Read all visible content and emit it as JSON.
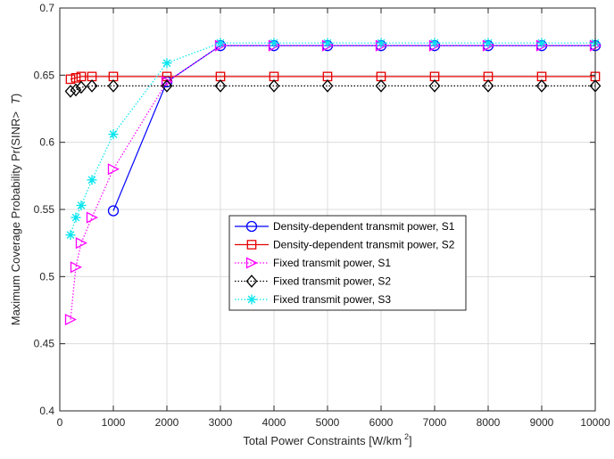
{
  "chart_data": {
    "type": "line",
    "xlabel": "Total Power Constraints [W/km",
    "xlabel_sup": "2",
    "xlabel_close": "]",
    "ylabel": "Maximum Coverage Probability Pr(SINR>",
    "ylabel_italic": "T",
    "ylabel_close": ")",
    "xlim": [
      0,
      10000
    ],
    "ylim": [
      0.4,
      0.7
    ],
    "xticks": [
      0,
      1000,
      2000,
      3000,
      4000,
      5000,
      6000,
      7000,
      8000,
      9000,
      10000
    ],
    "xtick_labels": [
      "0",
      "1000",
      "2000",
      "3000",
      "4000",
      "5000",
      "6000",
      "7000",
      "8000",
      "9000",
      "10000"
    ],
    "yticks": [
      0.4,
      0.45,
      0.5,
      0.55,
      0.6,
      0.65,
      0.7
    ],
    "ytick_labels": [
      "0.4",
      "0.45",
      "0.5",
      "0.55",
      "0.6",
      "0.65",
      "0.7"
    ],
    "grid": true,
    "legend_position": "center-right",
    "series": [
      {
        "name": "Density-dependent transmit power, S1",
        "color": "#0000ff",
        "marker": "circle",
        "dash": "solid",
        "x": [
          1000,
          2000,
          3000,
          4000,
          5000,
          6000,
          7000,
          8000,
          9000,
          10000
        ],
        "y": [
          0.549,
          0.645,
          0.672,
          0.672,
          0.672,
          0.672,
          0.672,
          0.672,
          0.672,
          0.672
        ]
      },
      {
        "name": "Density-dependent transmit power, S2",
        "color": "#e60000",
        "marker": "square",
        "dash": "solid",
        "x": [
          200,
          300,
          400,
          600,
          1000,
          2000,
          3000,
          4000,
          5000,
          6000,
          7000,
          8000,
          9000,
          10000
        ],
        "y": [
          0.647,
          0.648,
          0.649,
          0.649,
          0.649,
          0.649,
          0.649,
          0.649,
          0.649,
          0.649,
          0.649,
          0.649,
          0.649,
          0.649
        ]
      },
      {
        "name": "Fixed transmit power, S1",
        "color": "#ff00ff",
        "marker": "triangle-right",
        "dash": "dotted",
        "x": [
          200,
          300,
          400,
          600,
          1000,
          2000,
          3000,
          4000,
          5000,
          6000,
          7000,
          8000,
          9000,
          10000
        ],
        "y": [
          0.468,
          0.507,
          0.525,
          0.544,
          0.58,
          0.645,
          0.672,
          0.672,
          0.672,
          0.672,
          0.672,
          0.672,
          0.672,
          0.672
        ]
      },
      {
        "name": "Fixed transmit power, S2",
        "color": "#000000",
        "marker": "diamond",
        "dash": "dotted",
        "x": [
          200,
          300,
          400,
          600,
          1000,
          2000,
          3000,
          4000,
          5000,
          6000,
          7000,
          8000,
          9000,
          10000
        ],
        "y": [
          0.638,
          0.639,
          0.641,
          0.642,
          0.642,
          0.642,
          0.642,
          0.642,
          0.642,
          0.642,
          0.642,
          0.642,
          0.642,
          0.642
        ]
      },
      {
        "name": "Fixed transmit power, S3",
        "color": "#00e5ee",
        "marker": "asterisk",
        "dash": "dotted",
        "x": [
          200,
          300,
          400,
          600,
          1000,
          2000,
          3000,
          4000,
          5000,
          6000,
          7000,
          8000,
          9000,
          10000
        ],
        "y": [
          0.531,
          0.544,
          0.553,
          0.572,
          0.606,
          0.659,
          0.674,
          0.674,
          0.674,
          0.674,
          0.674,
          0.674,
          0.674,
          0.674
        ]
      }
    ]
  }
}
